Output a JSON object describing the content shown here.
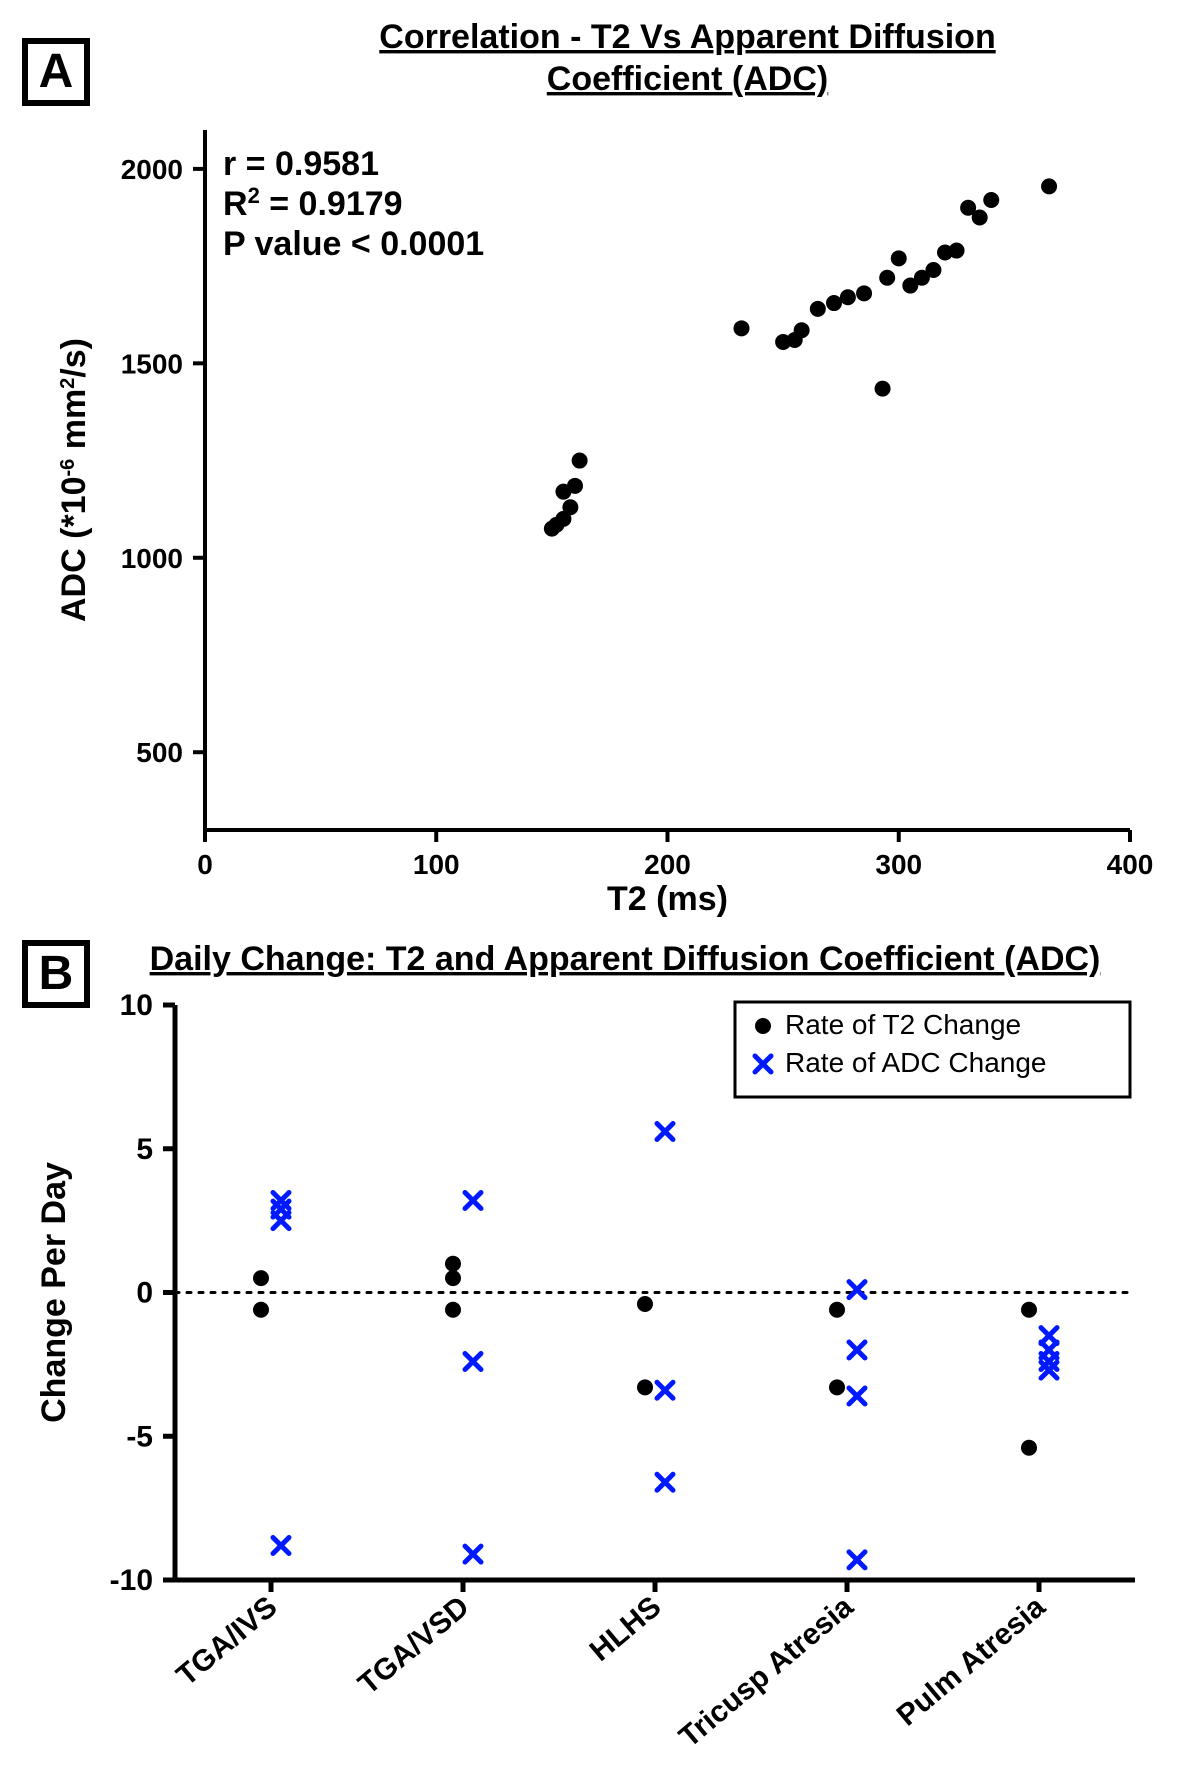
{
  "panelA": {
    "letter": "A",
    "title_line1": "Correlation - T2 Vs Apparent Diffusion",
    "title_line2": "Coefficient (ADC)",
    "stats": {
      "r_label": "r = 0.9581",
      "r2_label_prefix": "R",
      "r2_label_sup": "2",
      "r2_label_suffix": " = 0.9179",
      "p_label": "P value < 0.0001"
    },
    "chart": {
      "type": "scatter",
      "xlabel": "T2 (ms)",
      "ylabel_prefix": "ADC (*10",
      "ylabel_sup": "-6",
      "ylabel_mid": " mm",
      "ylabel_sup2": "2",
      "ylabel_suffix": "/s)",
      "xlim": [
        0,
        400
      ],
      "ylim": [
        300,
        2100
      ],
      "xticks": [
        0,
        100,
        200,
        300,
        400
      ],
      "yticks": [
        500,
        1000,
        1500,
        2000
      ],
      "axis_color": "#000000",
      "axis_width": 4,
      "tick_len": 12,
      "tick_fontsize": 28,
      "label_fontsize": 34,
      "title_fontsize": 34,
      "title_weight": "900",
      "stats_fontsize": 34,
      "stats_weight": "900",
      "point_color": "#000000",
      "point_radius": 8,
      "points": [
        [
          150,
          1075
        ],
        [
          152,
          1085
        ],
        [
          155,
          1100
        ],
        [
          158,
          1130
        ],
        [
          155,
          1170
        ],
        [
          160,
          1185
        ],
        [
          162,
          1250
        ],
        [
          232,
          1590
        ],
        [
          250,
          1555
        ],
        [
          255,
          1560
        ],
        [
          258,
          1585
        ],
        [
          265,
          1640
        ],
        [
          272,
          1655
        ],
        [
          278,
          1670
        ],
        [
          285,
          1680
        ],
        [
          293,
          1435
        ],
        [
          295,
          1720
        ],
        [
          300,
          1770
        ],
        [
          305,
          1700
        ],
        [
          310,
          1720
        ],
        [
          315,
          1740
        ],
        [
          320,
          1785
        ],
        [
          325,
          1790
        ],
        [
          330,
          1900
        ],
        [
          335,
          1875
        ],
        [
          340,
          1920
        ],
        [
          365,
          1955
        ]
      ]
    }
  },
  "panelB": {
    "letter": "B",
    "title": "Daily Change: T2 and Apparent Diffusion Coefficient (ADC)",
    "chart": {
      "type": "scatter-category",
      "ylabel": "Change Per Day",
      "ylim": [
        -10,
        10
      ],
      "yticks": [
        -10,
        -5,
        0,
        5,
        10
      ],
      "categories": [
        "TGA/IVS",
        "TGA/VSD",
        "HLHS",
        "Tricusp Atresia",
        "Pulm Atresia"
      ],
      "axis_color": "#000000",
      "axis_width": 5,
      "tick_len": 12,
      "tick_fontsize": 30,
      "label_fontsize": 34,
      "title_fontsize": 34,
      "title_weight": "900",
      "zero_line_color": "#000000",
      "legend": {
        "border_color": "#000000",
        "items": [
          {
            "label": "Rate of T2 Change",
            "color": "#000000",
            "marker": "circle"
          },
          {
            "label": "Rate of ADC Change",
            "color": "#0019ff",
            "marker": "x"
          }
        ]
      },
      "series": [
        {
          "name": "Rate of T2 Change",
          "color": "#000000",
          "marker": "circle",
          "radius": 8,
          "points_by_cat": [
            [
              -0.6,
              0.5
            ],
            [
              -0.6,
              0.5,
              1.0
            ],
            [
              -0.4,
              -3.3
            ],
            [
              -0.6,
              -3.3
            ],
            [
              -0.6,
              -5.4
            ]
          ]
        },
        {
          "name": "Rate of ADC Change",
          "color": "#0019ff",
          "marker": "x",
          "size": 16,
          "stroke_width": 5,
          "points_by_cat": [
            [
              2.5,
              2.9,
              3.2,
              -8.8
            ],
            [
              3.2,
              -2.4,
              -9.1
            ],
            [
              5.6,
              -3.4,
              -6.6
            ],
            [
              0.1,
              -2.0,
              -3.6,
              -9.3
            ],
            [
              -1.5,
              -2.0,
              -2.4,
              -2.7
            ]
          ]
        }
      ]
    }
  }
}
